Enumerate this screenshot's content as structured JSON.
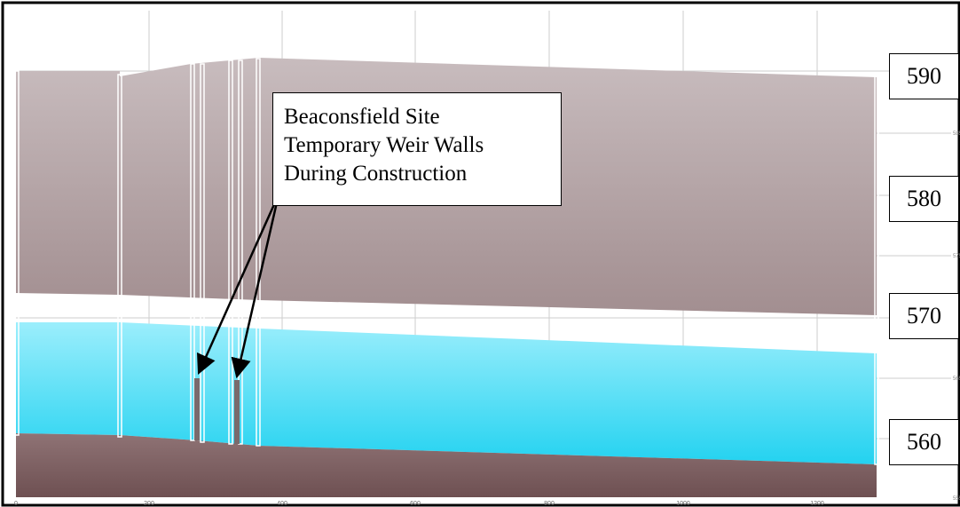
{
  "callout": {
    "lines": [
      "Beaconsfield Site",
      "Temporary Weir Walls",
      "During Construction"
    ]
  },
  "elevation_labels": [
    "590",
    "580",
    "570",
    "560"
  ],
  "x_axis_ticks": [
    "0",
    "200",
    "400",
    "600",
    "800",
    "1000",
    "1200"
  ],
  "right_axis_ticks": [
    "585",
    "575",
    "565",
    "555"
  ],
  "colors": {
    "sky_band": "#b2a2a4",
    "water": "#3fd8f2",
    "channel_bed": "#7e6163",
    "weir_wall": "#7a6a6c",
    "structure_line": "#ffffff",
    "grid": "#c8c8c8",
    "frame": "#000000"
  },
  "chart_data": {
    "type": "area",
    "xlim": [
      0,
      1300
    ],
    "ylim": [
      555,
      595
    ],
    "grid": true,
    "series": [
      {
        "x": [
          0,
          160,
          260,
          360,
          1300
        ],
        "values": [
          590,
          590,
          591,
          592,
          589
        ]
      },
      {
        "x": [
          0,
          160,
          360,
          1300
        ],
        "values": [
          572,
          572,
          571,
          568
        ]
      },
      {
        "x": [
          0,
          160,
          360,
          1300
        ],
        "values": [
          568,
          568,
          567,
          565
        ]
      },
      {
        "x": [
          0,
          160,
          260,
          360,
          1300
        ],
        "values": [
          561,
          561,
          560,
          559,
          557
        ]
      }
    ],
    "weir_walls": [
      {
        "x": 273,
        "top": 565
      },
      {
        "x": 333,
        "top": 565
      }
    ],
    "annotations": [
      "Beaconsfield Site Temporary Weir Walls During Construction"
    ]
  }
}
